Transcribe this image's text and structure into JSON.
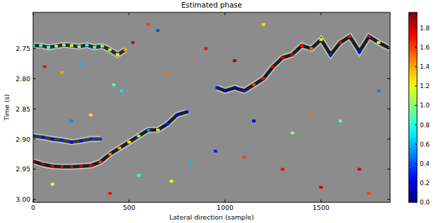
{
  "chart_data": {
    "type": "scatter",
    "title": "Estimated phase",
    "x_label": "Lateral direction (sample)",
    "y_label": "Time (s)",
    "xlim": [
      0,
      1860
    ],
    "ylim": [
      3.005,
      2.69
    ],
    "xticks": [
      0,
      500,
      1000,
      1500
    ],
    "yticks": [
      2.75,
      {
        "value": 2.8,
        "label": "2.80"
      },
      2.85,
      {
        "value": 2.9,
        "label": "2.90"
      },
      2.95,
      {
        "value": 3.0,
        "label": "3.00"
      }
    ],
    "colorbar": {
      "range": [
        0,
        1.96
      ],
      "ticks": [
        {
          "value": 0,
          "label": "0.0"
        },
        {
          "value": 0.2,
          "label": "0.2"
        },
        {
          "value": 0.4,
          "label": "0.4"
        },
        {
          "value": 0.6,
          "label": "0.6"
        },
        {
          "value": 0.8,
          "label": "0.8"
        },
        {
          "value": 1.0,
          "label": "1.0"
        },
        {
          "value": 1.2,
          "label": "1.2"
        },
        {
          "value": 1.4,
          "label": "1.4"
        },
        {
          "value": 1.6,
          "label": "1.6"
        },
        {
          "value": 1.8,
          "label": "1.8"
        }
      ]
    },
    "series": [
      {
        "type": "line",
        "color": "#2b2b2b",
        "x": [
          0,
          40,
          80,
          120,
          160,
          200,
          240,
          280,
          320,
          360,
          400,
          440,
          480
        ],
        "values": [
          2.745,
          2.745,
          2.748,
          2.746,
          2.744,
          2.745,
          2.747,
          2.744,
          2.748,
          2.746,
          2.752,
          2.76,
          2.752
        ],
        "phase": [
          0.8,
          0.85,
          0.9,
          0.95,
          1.0,
          1.1,
          1.0,
          0.8,
          0.9,
          1.0,
          1.1,
          1.2,
          1.4
        ]
      },
      {
        "type": "line",
        "color": "#1e1e1e",
        "x": [
          0,
          50,
          100,
          150,
          200,
          250,
          300,
          350,
          400,
          450,
          500,
          550,
          600,
          650,
          700,
          750,
          800
        ],
        "values": [
          2.937,
          2.942,
          2.945,
          2.946,
          2.946,
          2.945,
          2.944,
          2.938,
          2.925,
          2.915,
          2.905,
          2.895,
          2.885,
          2.885,
          2.875,
          2.86,
          2.855
        ],
        "phase": [
          1.85,
          1.85,
          1.8,
          1.8,
          1.8,
          1.8,
          1.75,
          1.6,
          1.5,
          1.4,
          1.2,
          1.0,
          0.5,
          1.1,
          0.3,
          0.2,
          0.1
        ]
      },
      {
        "type": "line",
        "color": "#3a3a3a",
        "x": [
          0,
          50,
          100,
          150,
          200,
          250,
          300,
          350
        ],
        "values": [
          2.895,
          2.897,
          2.9,
          2.902,
          2.905,
          2.903,
          2.9,
          2.9
        ],
        "phase": [
          0.2,
          0.25,
          0.2,
          0.3,
          0.25,
          0.2,
          0.3,
          0.35
        ]
      },
      {
        "type": "line",
        "color": "#1e1e1e",
        "x": [
          960,
          1000,
          1050,
          1100,
          1150,
          1200,
          1250,
          1300,
          1350,
          1400,
          1450,
          1500,
          1550,
          1600,
          1650,
          1700,
          1750,
          1800,
          1860
        ],
        "values": [
          2.815,
          2.82,
          2.815,
          2.82,
          2.81,
          2.8,
          2.78,
          2.765,
          2.76,
          2.745,
          2.75,
          2.735,
          2.76,
          2.74,
          2.73,
          2.755,
          2.73,
          2.74,
          2.75
        ],
        "phase": [
          0.2,
          0.1,
          0.2,
          0.3,
          1.6,
          1.7,
          1.8,
          1.8,
          1.8,
          1.7,
          1.5,
          1.2,
          0.3,
          1.8,
          1.7,
          0.2,
          1.8,
          1.2,
          1.4
        ]
      },
      {
        "type": "scatter",
        "x": [
          60,
          150,
          250,
          420,
          460,
          300,
          200,
          520,
          600,
          650,
          700,
          720,
          820,
          900,
          950,
          1050,
          1100,
          1150,
          1200,
          1300,
          1350,
          1450,
          1500,
          1600,
          1700,
          1750,
          1800,
          400,
          100,
          550
        ],
        "values": [
          2.78,
          2.79,
          2.775,
          2.81,
          2.82,
          2.86,
          2.87,
          2.74,
          2.71,
          2.72,
          2.79,
          2.97,
          2.94,
          2.75,
          2.92,
          2.77,
          2.93,
          2.87,
          2.71,
          2.95,
          2.89,
          2.86,
          2.98,
          2.87,
          2.95,
          2.99,
          2.82,
          2.99,
          2.975,
          2.96
        ],
        "phase": [
          1.7,
          1.4,
          0.6,
          0.9,
          0.7,
          1.3,
          0.5,
          1.8,
          1.6,
          0.4,
          1.5,
          1.2,
          0.6,
          1.7,
          0.3,
          1.9,
          1.6,
          0.2,
          1.3,
          1.7,
          1.0,
          1.5,
          1.8,
          0.9,
          1.8,
          1.6,
          0.5,
          1.7,
          1.2,
          0.8
        ]
      }
    ]
  }
}
